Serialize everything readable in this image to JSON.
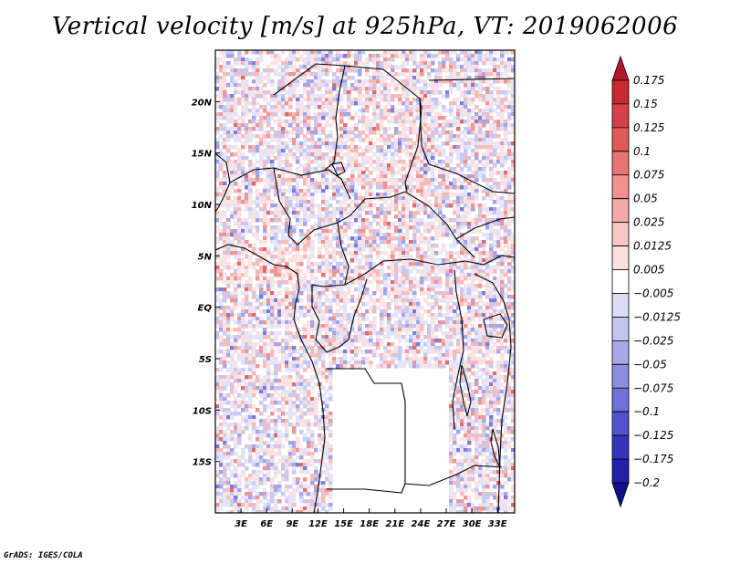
{
  "title": "Vertical velocity [m/s] at 925hPa, VT: 2019062006",
  "credit": "GrADS: IGES/COLA",
  "map": {
    "domain": {
      "lon_min": 0,
      "lon_max": 35,
      "lat_min": -20,
      "lat_max": 25
    },
    "lat_labels": [
      {
        "lat": 20,
        "label": "20N"
      },
      {
        "lat": 15,
        "label": "15N"
      },
      {
        "lat": 10,
        "label": "10N"
      },
      {
        "lat": 5,
        "label": "5N"
      },
      {
        "lat": 0,
        "label": "EQ"
      },
      {
        "lat": -5,
        "label": "5S"
      },
      {
        "lat": -10,
        "label": "10S"
      },
      {
        "lat": -15,
        "label": "15S"
      }
    ],
    "lon_labels": [
      {
        "lon": 3,
        "label": "3E"
      },
      {
        "lon": 6,
        "label": "6E"
      },
      {
        "lon": 9,
        "label": "9E"
      },
      {
        "lon": 12,
        "label": "12E"
      },
      {
        "lon": 15,
        "label": "15E"
      },
      {
        "lon": 18,
        "label": "18E"
      },
      {
        "lon": 21,
        "label": "21E"
      },
      {
        "lon": 24,
        "label": "24E"
      },
      {
        "lon": 27,
        "label": "27E"
      },
      {
        "lon": 30,
        "label": "30E"
      },
      {
        "lon": 33,
        "label": "33E"
      }
    ]
  },
  "colorbar": {
    "labels": [
      "0.175",
      "0.15",
      "0.125",
      "0.1",
      "0.075",
      "0.05",
      "0.025",
      "0.0125",
      "0.005",
      "−0.005",
      "−0.0125",
      "−0.025",
      "−0.05",
      "−0.075",
      "−0.1",
      "−0.125",
      "−0.175",
      "−0.2"
    ],
    "colors": [
      "#b2182b",
      "#c62a2f",
      "#d6404a",
      "#e05a5a",
      "#e87474",
      "#f09090",
      "#f4aaaa",
      "#f8c6c6",
      "#fce0e0",
      "#ffffff",
      "#dcdcf6",
      "#c4c4f0",
      "#a8a8e8",
      "#8c8ce0",
      "#7070d8",
      "#5252cc",
      "#3434bc",
      "#2020a8",
      "#10108c"
    ]
  }
}
